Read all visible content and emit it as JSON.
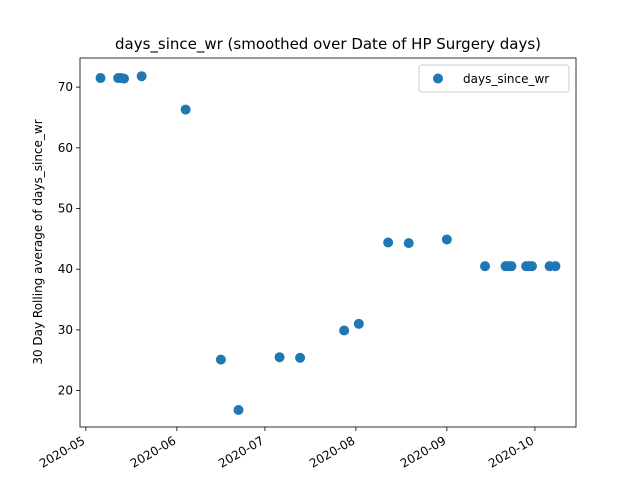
{
  "chart_data": {
    "type": "scatter",
    "title": "days_since_wr (smoothed over Date of HP Surgery days)",
    "xlabel": "",
    "ylabel": "30 Day Rolling average of days_since_wr",
    "legend": {
      "position": "top-right",
      "entries": [
        "days_since_wr"
      ]
    },
    "grid": false,
    "xlim": [
      "2020-04-29",
      "2020-10-15"
    ],
    "ylim": [
      14,
      74.8
    ],
    "xticks": [
      "2020-05",
      "2020-06",
      "2020-07",
      "2020-08",
      "2020-09",
      "2020-10"
    ],
    "yticks": [
      20,
      30,
      40,
      50,
      60,
      70
    ],
    "series": [
      {
        "name": "days_since_wr",
        "color": "#1f77b4",
        "points": [
          {
            "x": "2020-05-06",
            "y": 71.5
          },
          {
            "x": "2020-05-12",
            "y": 71.5
          },
          {
            "x": "2020-05-13",
            "y": 71.5
          },
          {
            "x": "2020-05-14",
            "y": 71.4
          },
          {
            "x": "2020-05-20",
            "y": 71.8
          },
          {
            "x": "2020-06-04",
            "y": 66.3
          },
          {
            "x": "2020-06-16",
            "y": 25.1
          },
          {
            "x": "2020-06-22",
            "y": 16.8
          },
          {
            "x": "2020-07-06",
            "y": 25.5
          },
          {
            "x": "2020-07-13",
            "y": 25.4
          },
          {
            "x": "2020-07-28",
            "y": 29.9
          },
          {
            "x": "2020-08-02",
            "y": 31.0
          },
          {
            "x": "2020-08-12",
            "y": 44.4
          },
          {
            "x": "2020-08-19",
            "y": 44.3
          },
          {
            "x": "2020-09-01",
            "y": 44.9
          },
          {
            "x": "2020-09-14",
            "y": 40.5
          },
          {
            "x": "2020-09-21",
            "y": 40.5
          },
          {
            "x": "2020-09-22",
            "y": 40.5
          },
          {
            "x": "2020-09-23",
            "y": 40.5
          },
          {
            "x": "2020-09-28",
            "y": 40.5
          },
          {
            "x": "2020-09-29",
            "y": 40.5
          },
          {
            "x": "2020-09-30",
            "y": 40.5
          },
          {
            "x": "2020-10-06",
            "y": 40.5
          },
          {
            "x": "2020-10-08",
            "y": 40.5
          }
        ]
      }
    ]
  }
}
